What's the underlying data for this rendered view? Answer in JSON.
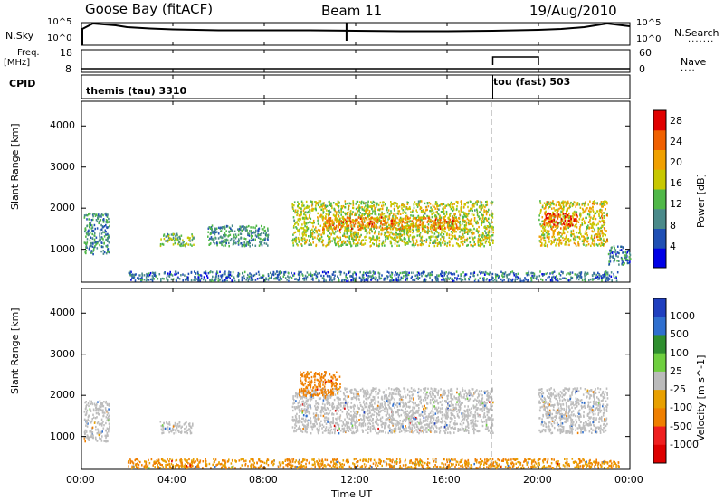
{
  "header": {
    "station": "Goose Bay (fitACF)",
    "beam": "Beam 11",
    "date": "19/Aug/2010"
  },
  "top_panels": {
    "nsky_label": "N.Sky",
    "nsearch_label": "N.Search",
    "noise_ticks": [
      "10^5",
      "10^0"
    ],
    "freq_label_1": "Freq.",
    "freq_label_2": "[MHz]",
    "freq_ticks": [
      "18",
      "8"
    ],
    "nave_label": "Nave",
    "nave_ticks": [
      "60",
      "0"
    ],
    "cpid_label": "CPID",
    "cpid_segments": [
      {
        "name": "themis (tau) 3310",
        "start_hour": 0,
        "end_hour": 18
      },
      {
        "name": "tou (fast) 503",
        "start_hour": 18,
        "end_hour": 24
      }
    ]
  },
  "x_axis": {
    "label": "Time UT",
    "ticks": [
      "00:00",
      "04:00",
      "08:00",
      "12:00",
      "16:00",
      "20:00",
      "00:00"
    ],
    "tick_hours": [
      0,
      4,
      8,
      12,
      16,
      20,
      24
    ]
  },
  "colors": {
    "power_scale": [
      "#0000e6",
      "#1f4fb4",
      "#4a8a8a",
      "#50b848",
      "#c8c800",
      "#f0a000",
      "#f06000",
      "#e00000"
    ],
    "velocity_scale": [
      "#1f3fbf",
      "#2f6fcf",
      "#2f8f2f",
      "#6fcf3f",
      "#bbbbbb",
      "#e8a000",
      "#ef7f00",
      "#ef1f1f",
      "#dd0000"
    ],
    "gray": "#bdbdbd"
  },
  "chart_data": [
    {
      "type": "line",
      "title": "",
      "series": [
        {
          "name": "N.Sky",
          "x": [
            0,
            0.5,
            1,
            1.5,
            2,
            3,
            4,
            6,
            8,
            10,
            12,
            14,
            16,
            18,
            19,
            20,
            21,
            22,
            22.5,
            23,
            23.5,
            24
          ],
          "y": [
            3.5,
            4.8,
            4.6,
            4.4,
            4.0,
            3.7,
            3.5,
            3.3,
            3.3,
            3.3,
            3.2,
            3.1,
            3.1,
            3.2,
            3.3,
            3.4,
            3.6,
            4.0,
            4.4,
            4.8,
            4.5,
            4.2
          ]
        }
      ],
      "xlim": [
        0,
        24
      ],
      "ylim": [
        0,
        5
      ],
      "ytick_labels": [
        "10^5",
        "10^0"
      ]
    },
    {
      "type": "line",
      "title": "",
      "series": [
        {
          "name": "Freq",
          "x": [
            0,
            18,
            18,
            24
          ],
          "y": [
            10,
            10,
            10,
            10
          ]
        },
        {
          "name": "Nave",
          "x": [
            0,
            18,
            18,
            20,
            20,
            24
          ],
          "y": [
            5,
            5,
            60,
            60,
            5,
            5
          ]
        }
      ],
      "xlim": [
        0,
        24
      ],
      "ylim": [
        8,
        18
      ],
      "ytick_labels": [
        "18",
        "8"
      ]
    },
    {
      "type": "heatmap",
      "xlabel": "",
      "ylabel": "Slant Range [km]",
      "xlim": [
        0,
        24
      ],
      "ylim": [
        200,
        4600
      ],
      "yticks": [
        1000,
        2000,
        3000,
        4000
      ],
      "colorbar": {
        "label": "Power [dB]",
        "ticks": [
          4,
          8,
          12,
          16,
          20,
          24,
          28
        ],
        "range": [
          0,
          30
        ]
      },
      "regions": [
        {
          "t0": 0.1,
          "t1": 1.2,
          "r0": 900,
          "r1": 1900,
          "level": 10
        },
        {
          "t0": 3.4,
          "t1": 4.9,
          "r0": 1100,
          "r1": 1400,
          "level": 12
        },
        {
          "t0": 5.5,
          "t1": 8.2,
          "r0": 1100,
          "r1": 1600,
          "level": 10
        },
        {
          "t0": 9.2,
          "t1": 18.0,
          "r0": 1100,
          "r1": 2200,
          "level": 16
        },
        {
          "t0": 10.5,
          "t1": 16.5,
          "r0": 1500,
          "r1": 1800,
          "level": 22
        },
        {
          "t0": 20.0,
          "t1": 23.0,
          "r0": 1100,
          "r1": 2200,
          "level": 18
        },
        {
          "t0": 20.2,
          "t1": 21.7,
          "r0": 1600,
          "r1": 1900,
          "level": 26
        },
        {
          "t0": 23.0,
          "t1": 24.0,
          "r0": 650,
          "r1": 1100,
          "level": 8
        },
        {
          "t0": 2.0,
          "t1": 23.5,
          "r0": 250,
          "r1": 480,
          "level": 8
        }
      ]
    },
    {
      "type": "heatmap",
      "xlabel": "Time UT",
      "ylabel": "Slant Range [km]",
      "xlim": [
        0,
        24
      ],
      "ylim": [
        200,
        4600
      ],
      "yticks": [
        1000,
        2000,
        3000,
        4000
      ],
      "colorbar": {
        "label": "Velocity [m s^-1]",
        "ticks": [
          1000,
          500,
          100,
          25,
          -25,
          -100,
          -500,
          -1000
        ]
      },
      "regions": [
        {
          "t0": 0.1,
          "t1": 1.2,
          "r0": 900,
          "r1": 1900,
          "velocity": 0
        },
        {
          "t0": 3.4,
          "t1": 4.9,
          "r0": 1100,
          "r1": 1400,
          "velocity": 0
        },
        {
          "t0": 9.2,
          "t1": 18.0,
          "r0": 1100,
          "r1": 2200,
          "velocity": 0
        },
        {
          "t0": 9.5,
          "t1": 11.3,
          "r0": 2000,
          "r1": 2600,
          "velocity": -300
        },
        {
          "t0": 20.0,
          "t1": 23.0,
          "r0": 1100,
          "r1": 2200,
          "velocity": 0
        },
        {
          "t0": 2.0,
          "t1": 23.5,
          "r0": 250,
          "r1": 480,
          "velocity": -100
        }
      ]
    }
  ]
}
